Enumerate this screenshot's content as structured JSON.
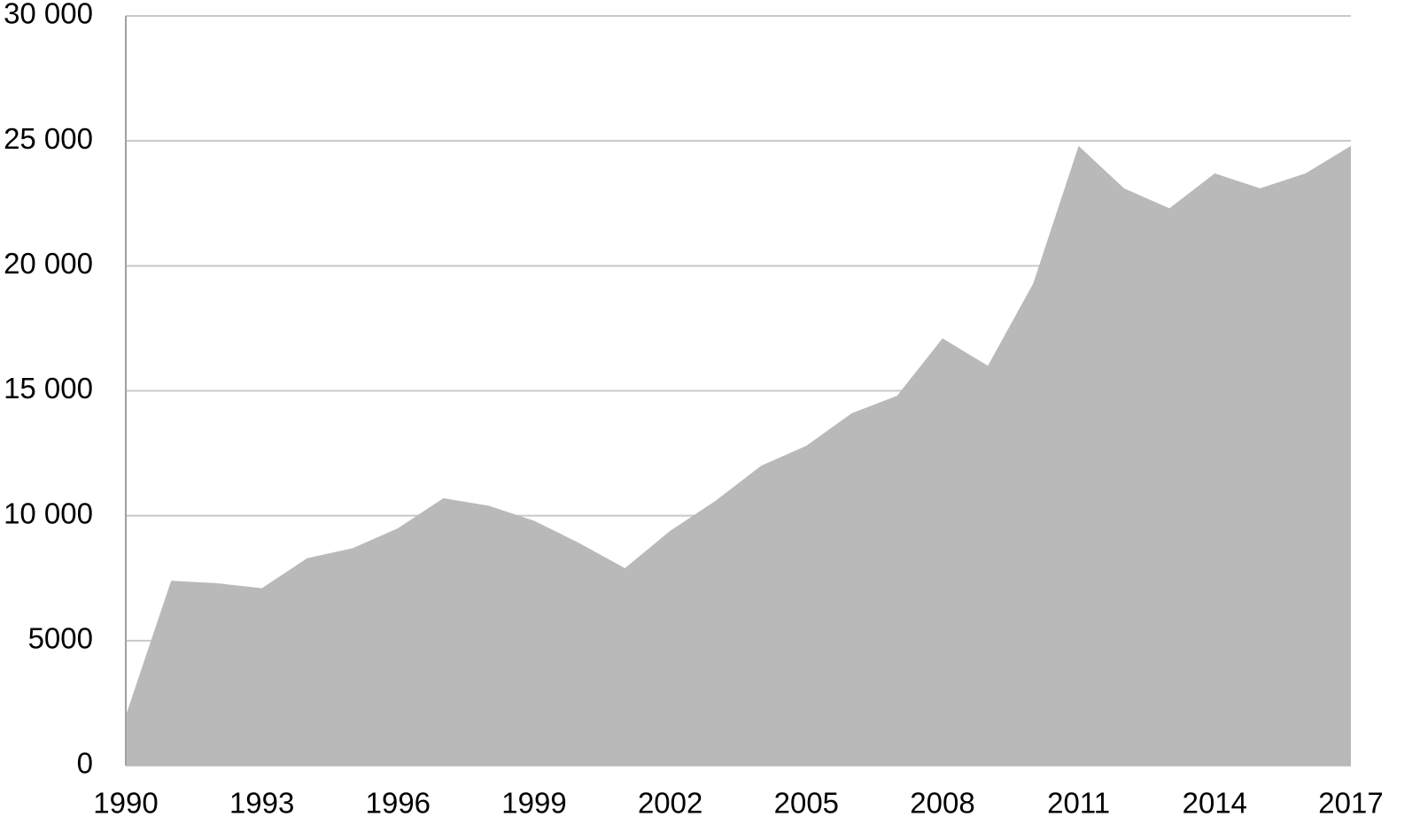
{
  "chart_data": {
    "type": "area",
    "x": [
      1990,
      1991,
      1992,
      1993,
      1994,
      1995,
      1996,
      1997,
      1998,
      1999,
      2000,
      2001,
      2002,
      2003,
      2004,
      2005,
      2006,
      2007,
      2008,
      2009,
      2010,
      2011,
      2012,
      2013,
      2014,
      2015,
      2016,
      2017
    ],
    "values": [
      2000,
      7400,
      7300,
      7100,
      8300,
      8700,
      9500,
      10700,
      10400,
      9800,
      8900,
      7900,
      9400,
      10600,
      12000,
      12800,
      14100,
      14800,
      17100,
      16000,
      19300,
      24800,
      23100,
      22300,
      23700,
      23100,
      23700,
      24800
    ],
    "color": "#b9b9b9",
    "xlim": [
      1990,
      2017
    ],
    "xticks": [
      1990,
      1993,
      1996,
      1999,
      2002,
      2005,
      2008,
      2011,
      2014,
      2017
    ],
    "ylim": [
      0,
      30000
    ],
    "yticks": [
      0,
      5000,
      {
        "value": 10000,
        "label": "10 000"
      },
      {
        "value": 15000,
        "label": "15 000"
      },
      {
        "value": 20000,
        "label": "20 000"
      },
      {
        "value": 25000,
        "label": "25 000"
      },
      {
        "value": 30000,
        "label": "30 000"
      }
    ],
    "grid": true
  }
}
